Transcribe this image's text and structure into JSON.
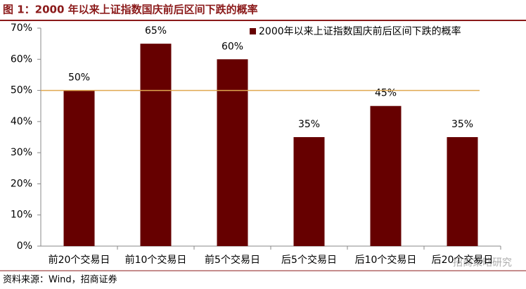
{
  "chart_data": {
    "type": "bar",
    "title": "图 1：2000 年以来上证指数国庆前后区间下跌的概率",
    "categories": [
      "前20个交易日",
      "前10个交易日",
      "前5个交易日",
      "后5个交易日",
      "后10个交易日",
      "后20个交易日"
    ],
    "series": [
      {
        "name": "2000年以来上证指数国庆前后区间下跌的概率",
        "color": "#660000",
        "values": [
          50,
          65,
          60,
          35,
          45,
          35
        ],
        "value_labels": [
          "50%",
          "65%",
          "60%",
          "35%",
          "45%",
          "35%"
        ]
      }
    ],
    "ylim": [
      0,
      70
    ],
    "yticks": [
      {
        "value": 0,
        "label": "0%"
      },
      {
        "value": 10,
        "label": "10%"
      },
      {
        "value": 20,
        "label": "20%"
      },
      {
        "value": 30,
        "label": "30%"
      },
      {
        "value": 40,
        "label": "40%"
      },
      {
        "value": 50,
        "label": "50%"
      },
      {
        "value": 60,
        "label": "60%"
      },
      {
        "value": 70,
        "label": "70%"
      }
    ],
    "reference_line": {
      "value": 50,
      "color": "#e0a850"
    },
    "legend": "top-right",
    "source": "资料来源：Wind，招商证券",
    "watermark": "招商策略研究"
  }
}
